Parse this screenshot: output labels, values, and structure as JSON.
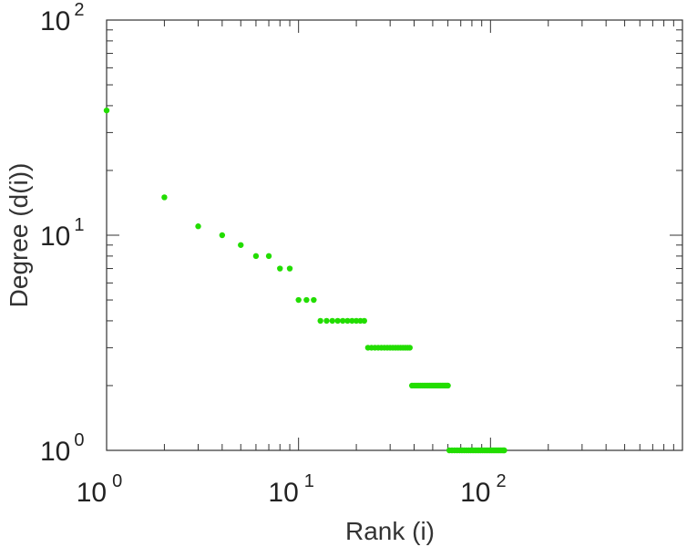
{
  "chart_data": {
    "type": "scatter",
    "xlabel": "Rank (i)",
    "ylabel": "Degree (d(i))",
    "x_scale": "log",
    "y_scale": "log",
    "xlim": [
      1,
      1000
    ],
    "ylim": [
      1,
      100
    ],
    "grid": false,
    "marker_color": "#22dd00",
    "x_ticks": [
      {
        "base": "10",
        "exp": "0"
      },
      {
        "base": "10",
        "exp": "1"
      },
      {
        "base": "10",
        "exp": "2"
      }
    ],
    "y_ticks": [
      {
        "base": "10",
        "exp": "0"
      },
      {
        "base": "10",
        "exp": "1"
      },
      {
        "base": "10",
        "exp": "2"
      }
    ],
    "series": [
      {
        "points": [
          {
            "x": 1,
            "y": 38
          },
          {
            "x": 2,
            "y": 15
          },
          {
            "x": 3,
            "y": 11
          },
          {
            "x": 4,
            "y": 10
          },
          {
            "x": 5,
            "y": 9
          },
          {
            "x": 6,
            "y": 8
          },
          {
            "x": 7,
            "y": 8
          },
          {
            "x": 8,
            "y": 7
          },
          {
            "x": 9,
            "y": 7
          },
          {
            "x": 10,
            "y": 5
          },
          {
            "x": 11,
            "y": 5
          },
          {
            "x": 12,
            "y": 5
          },
          {
            "x": 13,
            "y": 4
          },
          {
            "x": 14,
            "y": 4
          },
          {
            "x": 15,
            "y": 4
          },
          {
            "x": 16,
            "y": 4
          },
          {
            "x": 17,
            "y": 4
          },
          {
            "x": 18,
            "y": 4
          },
          {
            "x": 19,
            "y": 4
          },
          {
            "x": 20,
            "y": 4
          },
          {
            "x": 21,
            "y": 4
          },
          {
            "x": 22,
            "y": 4
          },
          {
            "x": 23,
            "y": 3
          },
          {
            "x": 24,
            "y": 3
          },
          {
            "x": 25,
            "y": 3
          },
          {
            "x": 26,
            "y": 3
          },
          {
            "x": 27,
            "y": 3
          },
          {
            "x": 28,
            "y": 3
          },
          {
            "x": 29,
            "y": 3
          },
          {
            "x": 30,
            "y": 3
          },
          {
            "x": 31,
            "y": 3
          },
          {
            "x": 32,
            "y": 3
          },
          {
            "x": 33,
            "y": 3
          },
          {
            "x": 34,
            "y": 3
          },
          {
            "x": 35,
            "y": 3
          },
          {
            "x": 36,
            "y": 3
          },
          {
            "x": 37,
            "y": 3
          },
          {
            "x": 38,
            "y": 3
          },
          {
            "x": 39,
            "y": 2
          },
          {
            "x": 40,
            "y": 2
          },
          {
            "x": 41,
            "y": 2
          },
          {
            "x": 42,
            "y": 2
          },
          {
            "x": 43,
            "y": 2
          },
          {
            "x": 44,
            "y": 2
          },
          {
            "x": 45,
            "y": 2
          },
          {
            "x": 46,
            "y": 2
          },
          {
            "x": 47,
            "y": 2
          },
          {
            "x": 48,
            "y": 2
          },
          {
            "x": 49,
            "y": 2
          },
          {
            "x": 50,
            "y": 2
          },
          {
            "x": 51,
            "y": 2
          },
          {
            "x": 52,
            "y": 2
          },
          {
            "x": 53,
            "y": 2
          },
          {
            "x": 54,
            "y": 2
          },
          {
            "x": 55,
            "y": 2
          },
          {
            "x": 56,
            "y": 2
          },
          {
            "x": 57,
            "y": 2
          },
          {
            "x": 58,
            "y": 2
          },
          {
            "x": 59,
            "y": 2
          },
          {
            "x": 60,
            "y": 2
          },
          {
            "x": 61,
            "y": 1
          },
          {
            "x": 63,
            "y": 1
          },
          {
            "x": 65,
            "y": 1
          },
          {
            "x": 67,
            "y": 1
          },
          {
            "x": 69,
            "y": 1
          },
          {
            "x": 71,
            "y": 1
          },
          {
            "x": 73,
            "y": 1
          },
          {
            "x": 75,
            "y": 1
          },
          {
            "x": 77,
            "y": 1
          },
          {
            "x": 79,
            "y": 1
          },
          {
            "x": 81,
            "y": 1
          },
          {
            "x": 83,
            "y": 1
          },
          {
            "x": 85,
            "y": 1
          },
          {
            "x": 87,
            "y": 1
          },
          {
            "x": 89,
            "y": 1
          },
          {
            "x": 91,
            "y": 1
          },
          {
            "x": 93,
            "y": 1
          },
          {
            "x": 95,
            "y": 1
          },
          {
            "x": 97,
            "y": 1
          },
          {
            "x": 99,
            "y": 1
          },
          {
            "x": 101,
            "y": 1
          },
          {
            "x": 103,
            "y": 1
          },
          {
            "x": 105,
            "y": 1
          },
          {
            "x": 107,
            "y": 1
          },
          {
            "x": 109,
            "y": 1
          },
          {
            "x": 111,
            "y": 1
          },
          {
            "x": 113,
            "y": 1
          },
          {
            "x": 115,
            "y": 1
          },
          {
            "x": 117,
            "y": 1
          },
          {
            "x": 118,
            "y": 1
          }
        ]
      }
    ]
  }
}
